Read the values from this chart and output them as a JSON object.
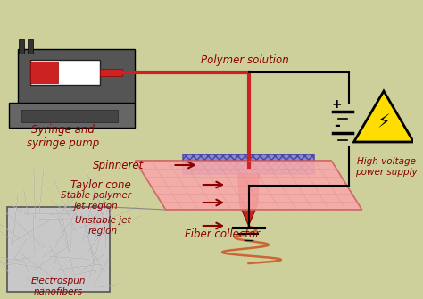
{
  "bg_color": "#cdd09a",
  "dark_red": "#8b0000",
  "red": "#cc2222",
  "label_color": "#8b0000",
  "labels": {
    "polymer_solution": "Polymer solution",
    "syringe": "Syringe and\nsyringe pump",
    "spinneret": "Spinneret",
    "taylor_cone": "Taylor cone",
    "stable_jet": "Stable polymer\njet region",
    "unstable_jet": "Unstable jet\nregion",
    "fiber_collector": "Fiber collector",
    "electrospun": "Electrospun\nnanofibers",
    "high_voltage": "High voltage\npower supply"
  }
}
